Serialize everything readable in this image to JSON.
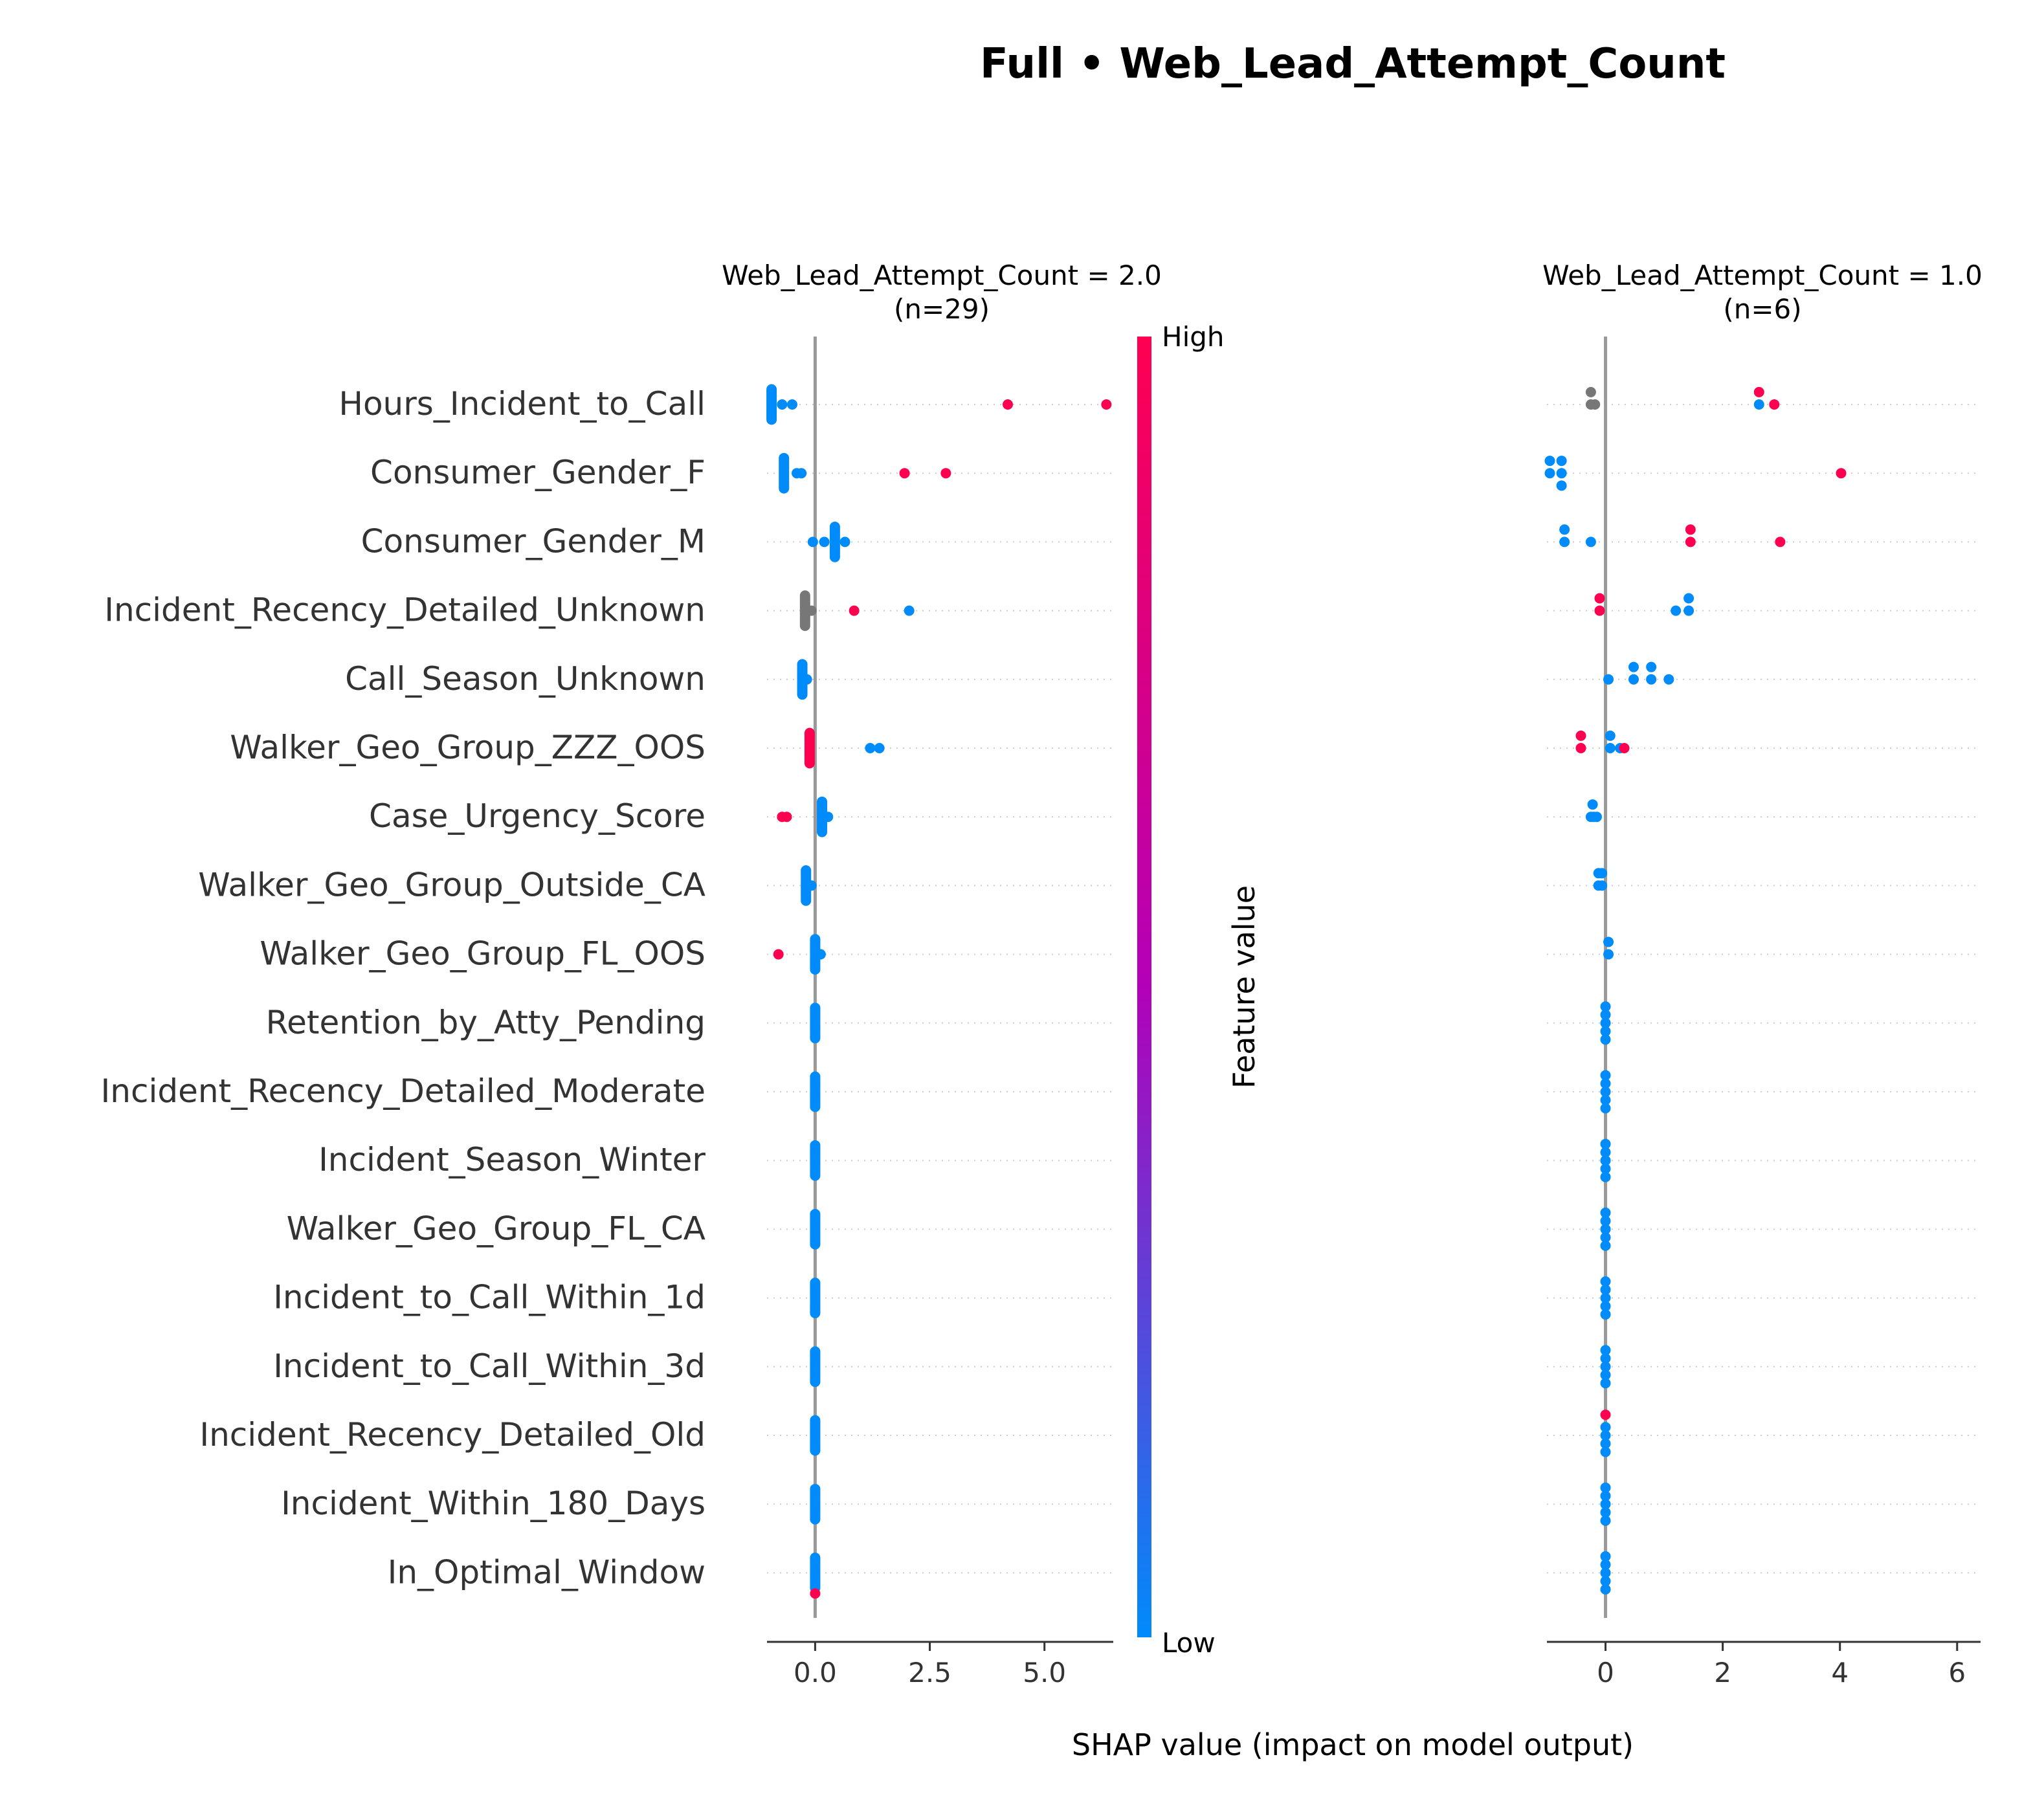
{
  "figure": {
    "title": "Full • Web_Lead_Attempt_Count",
    "xlabel": "SHAP value (impact on model output)"
  },
  "colorbar": {
    "label": "Feature value",
    "high_label": "High",
    "low_label": "Low",
    "high_color": "#ff0051",
    "mid_color": "#b300b8",
    "low_color": "#008bfb",
    "missing_color": "#777777"
  },
  "chart_data": [
    {
      "type": "scatter",
      "title": "Web_Lead_Attempt_Count = 2.0",
      "subtitle": "(n=29)",
      "xlabel": "SHAP value (impact on model output)",
      "xlim": [
        -1.05,
        6.5
      ],
      "xticks": [
        0.0,
        2.5,
        5.0
      ],
      "xtick_labels": [
        "0.0",
        "2.5",
        "5.0"
      ],
      "features": [
        "Hours_Incident_to_Call",
        "Consumer_Gender_F",
        "Consumer_Gender_M",
        "Incident_Recency_Detailed_Unknown",
        "Call_Season_Unknown",
        "Walker_Geo_Group_ZZZ_OOS",
        "Case_Urgency_Score",
        "Walker_Geo_Group_Outside_CA",
        "Walker_Geo_Group_FL_OOS",
        "Retention_by_Atty_Pending",
        "Incident_Recency_Detailed_Moderate",
        "Incident_Season_Winter",
        "Walker_Geo_Group_FL_CA",
        "Incident_to_Call_Within_1d",
        "Incident_to_Call_Within_3d",
        "Incident_Recency_Detailed_Old",
        "Incident_Within_180_Days",
        "In_Optimal_Window"
      ],
      "points": [
        {
          "feature": "Hours_Incident_to_Call",
          "cluster": {
            "x": -0.95,
            "count": 20,
            "spread": 0.22,
            "value": 0
          },
          "extra": [
            {
              "x": -0.72,
              "v": 0
            },
            {
              "x": -0.5,
              "v": 0
            },
            {
              "x": 4.2,
              "v": 1
            },
            {
              "x": 6.35,
              "v": 1
            }
          ]
        },
        {
          "feature": "Consumer_Gender_F",
          "cluster": {
            "x": -0.68,
            "count": 20,
            "spread": 0.22,
            "value": 0
          },
          "extra": [
            {
              "x": -0.4,
              "v": 0
            },
            {
              "x": -0.3,
              "v": 0
            },
            {
              "x": 1.95,
              "v": 1
            },
            {
              "x": 2.85,
              "v": 1
            }
          ]
        },
        {
          "feature": "Consumer_Gender_M",
          "cluster": {
            "x": 0.43,
            "count": 20,
            "spread": 0.22,
            "value": 0
          },
          "extra": [
            {
              "x": -0.05,
              "v": 0
            },
            {
              "x": 0.2,
              "v": 0
            },
            {
              "x": 0.65,
              "v": 0
            }
          ]
        },
        {
          "feature": "Incident_Recency_Detailed_Unknown",
          "cluster": {
            "x": -0.22,
            "count": 20,
            "spread": 0.22,
            "value": null
          },
          "extra": [
            {
              "x": -0.08,
              "v": null
            },
            {
              "x": 0.85,
              "v": 1
            },
            {
              "x": 2.05,
              "v": 0
            }
          ]
        },
        {
          "feature": "Call_Season_Unknown",
          "cluster": {
            "x": -0.28,
            "count": 20,
            "spread": 0.22,
            "value": 0
          },
          "extra": [
            {
              "x": -0.18,
              "v": 0
            }
          ]
        },
        {
          "feature": "Walker_Geo_Group_ZZZ_OOS",
          "cluster": {
            "x": -0.12,
            "count": 20,
            "spread": 0.22,
            "value": 1
          },
          "extra": [
            {
              "x": 1.2,
              "v": 0
            },
            {
              "x": 1.4,
              "v": 0
            }
          ]
        },
        {
          "feature": "Case_Urgency_Score",
          "cluster": {
            "x": 0.15,
            "count": 20,
            "spread": 0.22,
            "value": 0
          },
          "extra": [
            {
              "x": -0.72,
              "v": 1
            },
            {
              "x": -0.62,
              "v": 1
            },
            {
              "x": 0.28,
              "v": 0
            }
          ]
        },
        {
          "feature": "Walker_Geo_Group_Outside_CA",
          "cluster": {
            "x": -0.2,
            "count": 20,
            "spread": 0.22,
            "value": 0
          },
          "extra": [
            {
              "x": -0.08,
              "v": 0
            }
          ]
        },
        {
          "feature": "Walker_Geo_Group_FL_OOS",
          "cluster": {
            "x": 0.0,
            "count": 20,
            "spread": 0.22,
            "value": 0
          },
          "extra": [
            {
              "x": -0.8,
              "v": 1
            },
            {
              "x": 0.12,
              "v": 0
            }
          ]
        },
        {
          "feature": "Retention_by_Atty_Pending",
          "cluster": {
            "x": 0.0,
            "count": 20,
            "spread": 0.22,
            "value": 0
          },
          "extra": []
        },
        {
          "feature": "Incident_Recency_Detailed_Moderate",
          "cluster": {
            "x": 0.0,
            "count": 20,
            "spread": 0.22,
            "value": 0
          },
          "extra": []
        },
        {
          "feature": "Incident_Season_Winter",
          "cluster": {
            "x": 0.0,
            "count": 20,
            "spread": 0.22,
            "value": 0
          },
          "extra": []
        },
        {
          "feature": "Walker_Geo_Group_FL_CA",
          "cluster": {
            "x": 0.0,
            "count": 20,
            "spread": 0.22,
            "value": 0
          },
          "extra": []
        },
        {
          "feature": "Incident_to_Call_Within_1d",
          "cluster": {
            "x": 0.0,
            "count": 20,
            "spread": 0.22,
            "value": 0
          },
          "extra": []
        },
        {
          "feature": "Incident_to_Call_Within_3d",
          "cluster": {
            "x": 0.0,
            "count": 20,
            "spread": 0.22,
            "value": 0
          },
          "extra": []
        },
        {
          "feature": "Incident_Recency_Detailed_Old",
          "cluster": {
            "x": 0.0,
            "count": 20,
            "spread": 0.22,
            "value": 0
          },
          "extra": []
        },
        {
          "feature": "Incident_Within_180_Days",
          "cluster": {
            "x": 0.0,
            "count": 20,
            "spread": 0.22,
            "value": 0
          },
          "extra": []
        },
        {
          "feature": "In_Optimal_Window",
          "cluster": {
            "x": 0.0,
            "count": 20,
            "spread": 0.22,
            "value": 0
          },
          "extra": [
            {
              "x": 0.0,
              "v": 1,
              "dy": 0.3
            }
          ]
        }
      ]
    },
    {
      "type": "scatter",
      "title": "Web_Lead_Attempt_Count = 1.0",
      "subtitle": "(n=6)",
      "xlabel": "SHAP value (impact on model output)",
      "xlim": [
        -1.0,
        6.4
      ],
      "xticks": [
        0,
        2,
        4,
        6
      ],
      "xtick_labels": [
        "0",
        "2",
        "4",
        "6"
      ],
      "features": [
        "Hours_Incident_to_Call",
        "Consumer_Gender_F",
        "Consumer_Gender_M",
        "Incident_Recency_Detailed_Unknown",
        "Call_Season_Unknown",
        "Walker_Geo_Group_ZZZ_OOS",
        "Case_Urgency_Score",
        "Walker_Geo_Group_Outside_CA",
        "Walker_Geo_Group_FL_OOS",
        "Retention_by_Atty_Pending",
        "Incident_Recency_Detailed_Moderate",
        "Incident_Season_Winter",
        "Walker_Geo_Group_FL_CA",
        "Incident_to_Call_Within_1d",
        "Incident_to_Call_Within_3d",
        "Incident_Recency_Detailed_Old",
        "Incident_Within_180_Days",
        "In_Optimal_Window"
      ],
      "points": [
        {
          "feature": "Hours_Incident_to_Call",
          "extra": [
            {
              "x": -0.25,
              "dy": -0.18,
              "v": null
            },
            {
              "x": -0.25,
              "dy": 0.0,
              "v": null
            },
            {
              "x": -0.18,
              "dy": 0.0,
              "v": null
            },
            {
              "x": 2.62,
              "dy": -0.18,
              "v": 1
            },
            {
              "x": 2.62,
              "dy": 0.0,
              "v": 0
            },
            {
              "x": 2.88,
              "dy": 0.0,
              "v": 1
            }
          ]
        },
        {
          "feature": "Consumer_Gender_F",
          "extra": [
            {
              "x": -0.95,
              "dy": -0.18,
              "v": 0
            },
            {
              "x": -0.95,
              "dy": 0.0,
              "v": 0
            },
            {
              "x": -0.75,
              "dy": -0.18,
              "v": 0
            },
            {
              "x": -0.75,
              "dy": 0.0,
              "v": 0
            },
            {
              "x": -0.75,
              "dy": 0.18,
              "v": 0
            },
            {
              "x": 4.02,
              "dy": 0.0,
              "v": 1
            }
          ]
        },
        {
          "feature": "Consumer_Gender_M",
          "extra": [
            {
              "x": -0.7,
              "dy": -0.18,
              "v": 0
            },
            {
              "x": -0.7,
              "dy": 0.0,
              "v": 0
            },
            {
              "x": -0.25,
              "dy": 0.0,
              "v": 0
            },
            {
              "x": 1.45,
              "dy": -0.18,
              "v": 1
            },
            {
              "x": 1.45,
              "dy": 0.0,
              "v": 1
            },
            {
              "x": 2.98,
              "dy": 0.0,
              "v": 1
            }
          ]
        },
        {
          "feature": "Incident_Recency_Detailed_Unknown",
          "extra": [
            {
              "x": -0.1,
              "dy": -0.18,
              "v": 1
            },
            {
              "x": -0.1,
              "dy": 0.0,
              "v": 1
            },
            {
              "x": 1.2,
              "dy": 0.0,
              "v": 0
            },
            {
              "x": 1.42,
              "dy": -0.18,
              "v": 0
            },
            {
              "x": 1.42,
              "dy": 0.0,
              "v": 0
            }
          ]
        },
        {
          "feature": "Call_Season_Unknown",
          "extra": [
            {
              "x": 0.05,
              "dy": 0.0,
              "v": 0
            },
            {
              "x": 0.48,
              "dy": -0.18,
              "v": 0
            },
            {
              "x": 0.48,
              "dy": 0.0,
              "v": 0
            },
            {
              "x": 0.78,
              "dy": -0.18,
              "v": 0
            },
            {
              "x": 0.78,
              "dy": 0.0,
              "v": 0
            },
            {
              "x": 1.08,
              "dy": 0.0,
              "v": 0
            }
          ]
        },
        {
          "feature": "Walker_Geo_Group_ZZZ_OOS",
          "extra": [
            {
              "x": -0.42,
              "dy": -0.18,
              "v": 1
            },
            {
              "x": -0.42,
              "dy": 0.0,
              "v": 1
            },
            {
              "x": 0.08,
              "dy": -0.18,
              "v": 0
            },
            {
              "x": 0.08,
              "dy": 0.0,
              "v": 0
            },
            {
              "x": 0.25,
              "dy": 0.0,
              "v": 0
            },
            {
              "x": 0.32,
              "dy": 0.0,
              "v": 1
            }
          ]
        },
        {
          "feature": "Case_Urgency_Score",
          "extra": [
            {
              "x": -0.22,
              "dy": -0.18,
              "v": 0
            },
            {
              "x": -0.25,
              "dy": 0.0,
              "v": 0
            },
            {
              "x": -0.2,
              "dy": 0.0,
              "v": 0
            },
            {
              "x": -0.15,
              "dy": 0.0,
              "v": 0
            }
          ]
        },
        {
          "feature": "Walker_Geo_Group_Outside_CA",
          "extra": [
            {
              "x": -0.12,
              "dy": -0.18,
              "v": 0
            },
            {
              "x": -0.06,
              "dy": -0.18,
              "v": 0
            },
            {
              "x": -0.12,
              "dy": 0.0,
              "v": 0
            },
            {
              "x": -0.06,
              "dy": 0.0,
              "v": 0
            }
          ]
        },
        {
          "feature": "Walker_Geo_Group_FL_OOS",
          "extra": [
            {
              "x": 0.05,
              "dy": -0.18,
              "v": 0
            },
            {
              "x": 0.05,
              "dy": 0.0,
              "v": 0
            }
          ]
        },
        {
          "feature": "Retention_by_Atty_Pending",
          "extra": [
            {
              "x": 0.0,
              "dy": -0.24,
              "v": 0
            },
            {
              "x": 0.0,
              "dy": -0.12,
              "v": 0
            },
            {
              "x": 0.0,
              "dy": 0.0,
              "v": 0
            },
            {
              "x": 0.0,
              "dy": 0.12,
              "v": 0
            },
            {
              "x": 0.0,
              "dy": 0.24,
              "v": 0
            }
          ]
        },
        {
          "feature": "Incident_Recency_Detailed_Moderate",
          "extra": [
            {
              "x": 0.0,
              "dy": -0.24,
              "v": 0
            },
            {
              "x": 0.0,
              "dy": -0.12,
              "v": 0
            },
            {
              "x": 0.0,
              "dy": 0.0,
              "v": 0
            },
            {
              "x": 0.0,
              "dy": 0.12,
              "v": 0
            },
            {
              "x": 0.0,
              "dy": 0.24,
              "v": 0
            }
          ]
        },
        {
          "feature": "Incident_Season_Winter",
          "extra": [
            {
              "x": 0.0,
              "dy": -0.24,
              "v": 0
            },
            {
              "x": 0.0,
              "dy": -0.12,
              "v": 0
            },
            {
              "x": 0.0,
              "dy": 0.0,
              "v": 0
            },
            {
              "x": 0.0,
              "dy": 0.12,
              "v": 0
            },
            {
              "x": 0.0,
              "dy": 0.24,
              "v": 0
            }
          ]
        },
        {
          "feature": "Walker_Geo_Group_FL_CA",
          "extra": [
            {
              "x": 0.0,
              "dy": -0.24,
              "v": 0
            },
            {
              "x": 0.0,
              "dy": -0.12,
              "v": 0
            },
            {
              "x": 0.0,
              "dy": 0.0,
              "v": 0
            },
            {
              "x": 0.0,
              "dy": 0.12,
              "v": 0
            },
            {
              "x": 0.0,
              "dy": 0.24,
              "v": 0
            }
          ]
        },
        {
          "feature": "Incident_to_Call_Within_1d",
          "extra": [
            {
              "x": 0.0,
              "dy": -0.24,
              "v": 0
            },
            {
              "x": 0.0,
              "dy": -0.12,
              "v": 0
            },
            {
              "x": 0.0,
              "dy": 0.0,
              "v": 0
            },
            {
              "x": 0.0,
              "dy": 0.12,
              "v": 0
            },
            {
              "x": 0.0,
              "dy": 0.24,
              "v": 0
            }
          ]
        },
        {
          "feature": "Incident_to_Call_Within_3d",
          "extra": [
            {
              "x": 0.0,
              "dy": -0.24,
              "v": 0
            },
            {
              "x": 0.0,
              "dy": -0.12,
              "v": 0
            },
            {
              "x": 0.0,
              "dy": 0.0,
              "v": 0
            },
            {
              "x": 0.0,
              "dy": 0.12,
              "v": 0
            },
            {
              "x": 0.0,
              "dy": 0.24,
              "v": 0
            }
          ]
        },
        {
          "feature": "Incident_Recency_Detailed_Old",
          "extra": [
            {
              "x": 0.0,
              "dy": -0.3,
              "v": 1
            },
            {
              "x": 0.0,
              "dy": -0.12,
              "v": 0
            },
            {
              "x": 0.0,
              "dy": 0.0,
              "v": 0
            },
            {
              "x": 0.0,
              "dy": 0.12,
              "v": 0
            },
            {
              "x": 0.0,
              "dy": 0.24,
              "v": 0
            }
          ]
        },
        {
          "feature": "Incident_Within_180_Days",
          "extra": [
            {
              "x": 0.0,
              "dy": -0.24,
              "v": 0
            },
            {
              "x": 0.0,
              "dy": -0.12,
              "v": 0
            },
            {
              "x": 0.0,
              "dy": 0.0,
              "v": 0
            },
            {
              "x": 0.0,
              "dy": 0.12,
              "v": 0
            },
            {
              "x": 0.0,
              "dy": 0.24,
              "v": 0
            }
          ]
        },
        {
          "feature": "In_Optimal_Window",
          "extra": [
            {
              "x": 0.0,
              "dy": -0.24,
              "v": 0
            },
            {
              "x": 0.0,
              "dy": -0.12,
              "v": 0
            },
            {
              "x": 0.0,
              "dy": 0.0,
              "v": 0
            },
            {
              "x": 0.0,
              "dy": 0.12,
              "v": 0
            },
            {
              "x": 0.0,
              "dy": 0.24,
              "v": 0
            }
          ]
        }
      ]
    }
  ]
}
